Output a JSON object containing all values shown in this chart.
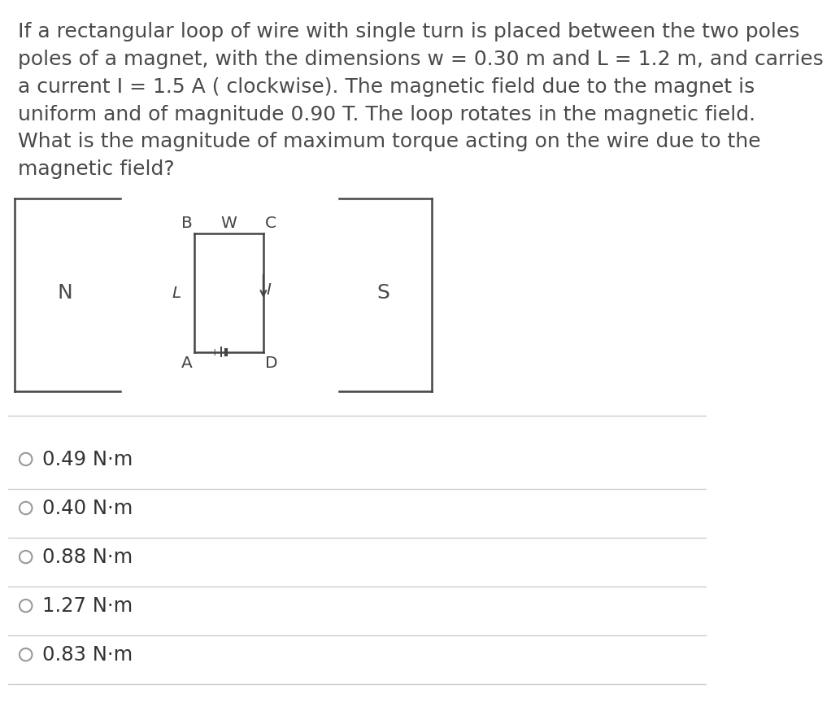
{
  "question_lines": [
    "If a rectangular loop of wire with single turn is placed between the two poles",
    "poles of a magnet, with the dimensions w = 0.30 m and L = 1.2 m, and carries",
    "a current I = 1.5 A ( clockwise). The magnetic field due to the magnet is",
    "uniform and of magnitude 0.90 T. The loop rotates in the magnetic field.",
    "What is the magnitude of maximum torque acting on the wire due to the",
    "magnetic field?"
  ],
  "options": [
    "0.49 N·m",
    "0.40 N·m",
    "0.88 N·m",
    "1.27 N·m",
    "0.83 N·m"
  ],
  "bg_color": "#ffffff",
  "text_color": "#4a4a4a",
  "option_text_color": "#333333",
  "line_color": "#cccccc",
  "diagram_color": "#444444",
  "question_fontsize": 18,
  "option_fontsize": 17.5,
  "label_fontsize": 14.5,
  "N_label": "N",
  "S_label": "S",
  "loop_labels": {
    "B": "B",
    "W": "W",
    "C": "C",
    "L": "L",
    "A": "A",
    "D": "D",
    "I": "I"
  }
}
